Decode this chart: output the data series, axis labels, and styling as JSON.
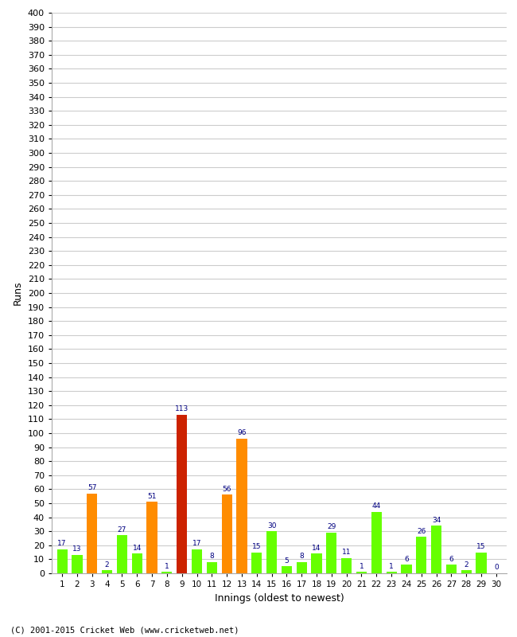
{
  "values": [
    17,
    13,
    57,
    2,
    27,
    14,
    51,
    1,
    113,
    17,
    8,
    56,
    96,
    15,
    30,
    5,
    8,
    14,
    29,
    11,
    1,
    44,
    1,
    6,
    26,
    34,
    6,
    2,
    15,
    0
  ],
  "innings": [
    1,
    2,
    3,
    4,
    5,
    6,
    7,
    8,
    9,
    10,
    11,
    12,
    13,
    14,
    15,
    16,
    17,
    18,
    19,
    20,
    21,
    22,
    23,
    24,
    25,
    26,
    27,
    28,
    29,
    30
  ],
  "xlabel": "Innings (oldest to newest)",
  "ylabel": "Runs",
  "ylim": [
    0,
    400
  ],
  "yticks": [
    0,
    10,
    20,
    30,
    40,
    50,
    60,
    70,
    80,
    90,
    100,
    110,
    120,
    130,
    140,
    150,
    160,
    170,
    180,
    190,
    200,
    210,
    220,
    230,
    240,
    250,
    260,
    270,
    280,
    290,
    300,
    310,
    320,
    330,
    340,
    350,
    360,
    370,
    380,
    390,
    400
  ],
  "color_green": "#66ff00",
  "color_orange": "#ff8c00",
  "color_red": "#cc2200",
  "label_color": "#000080",
  "grid_color": "#cccccc",
  "bg_color": "#ffffff",
  "footer": "(C) 2001-2015 Cricket Web (www.cricketweb.net)",
  "fifty_threshold": 50,
  "hundred_threshold": 100
}
